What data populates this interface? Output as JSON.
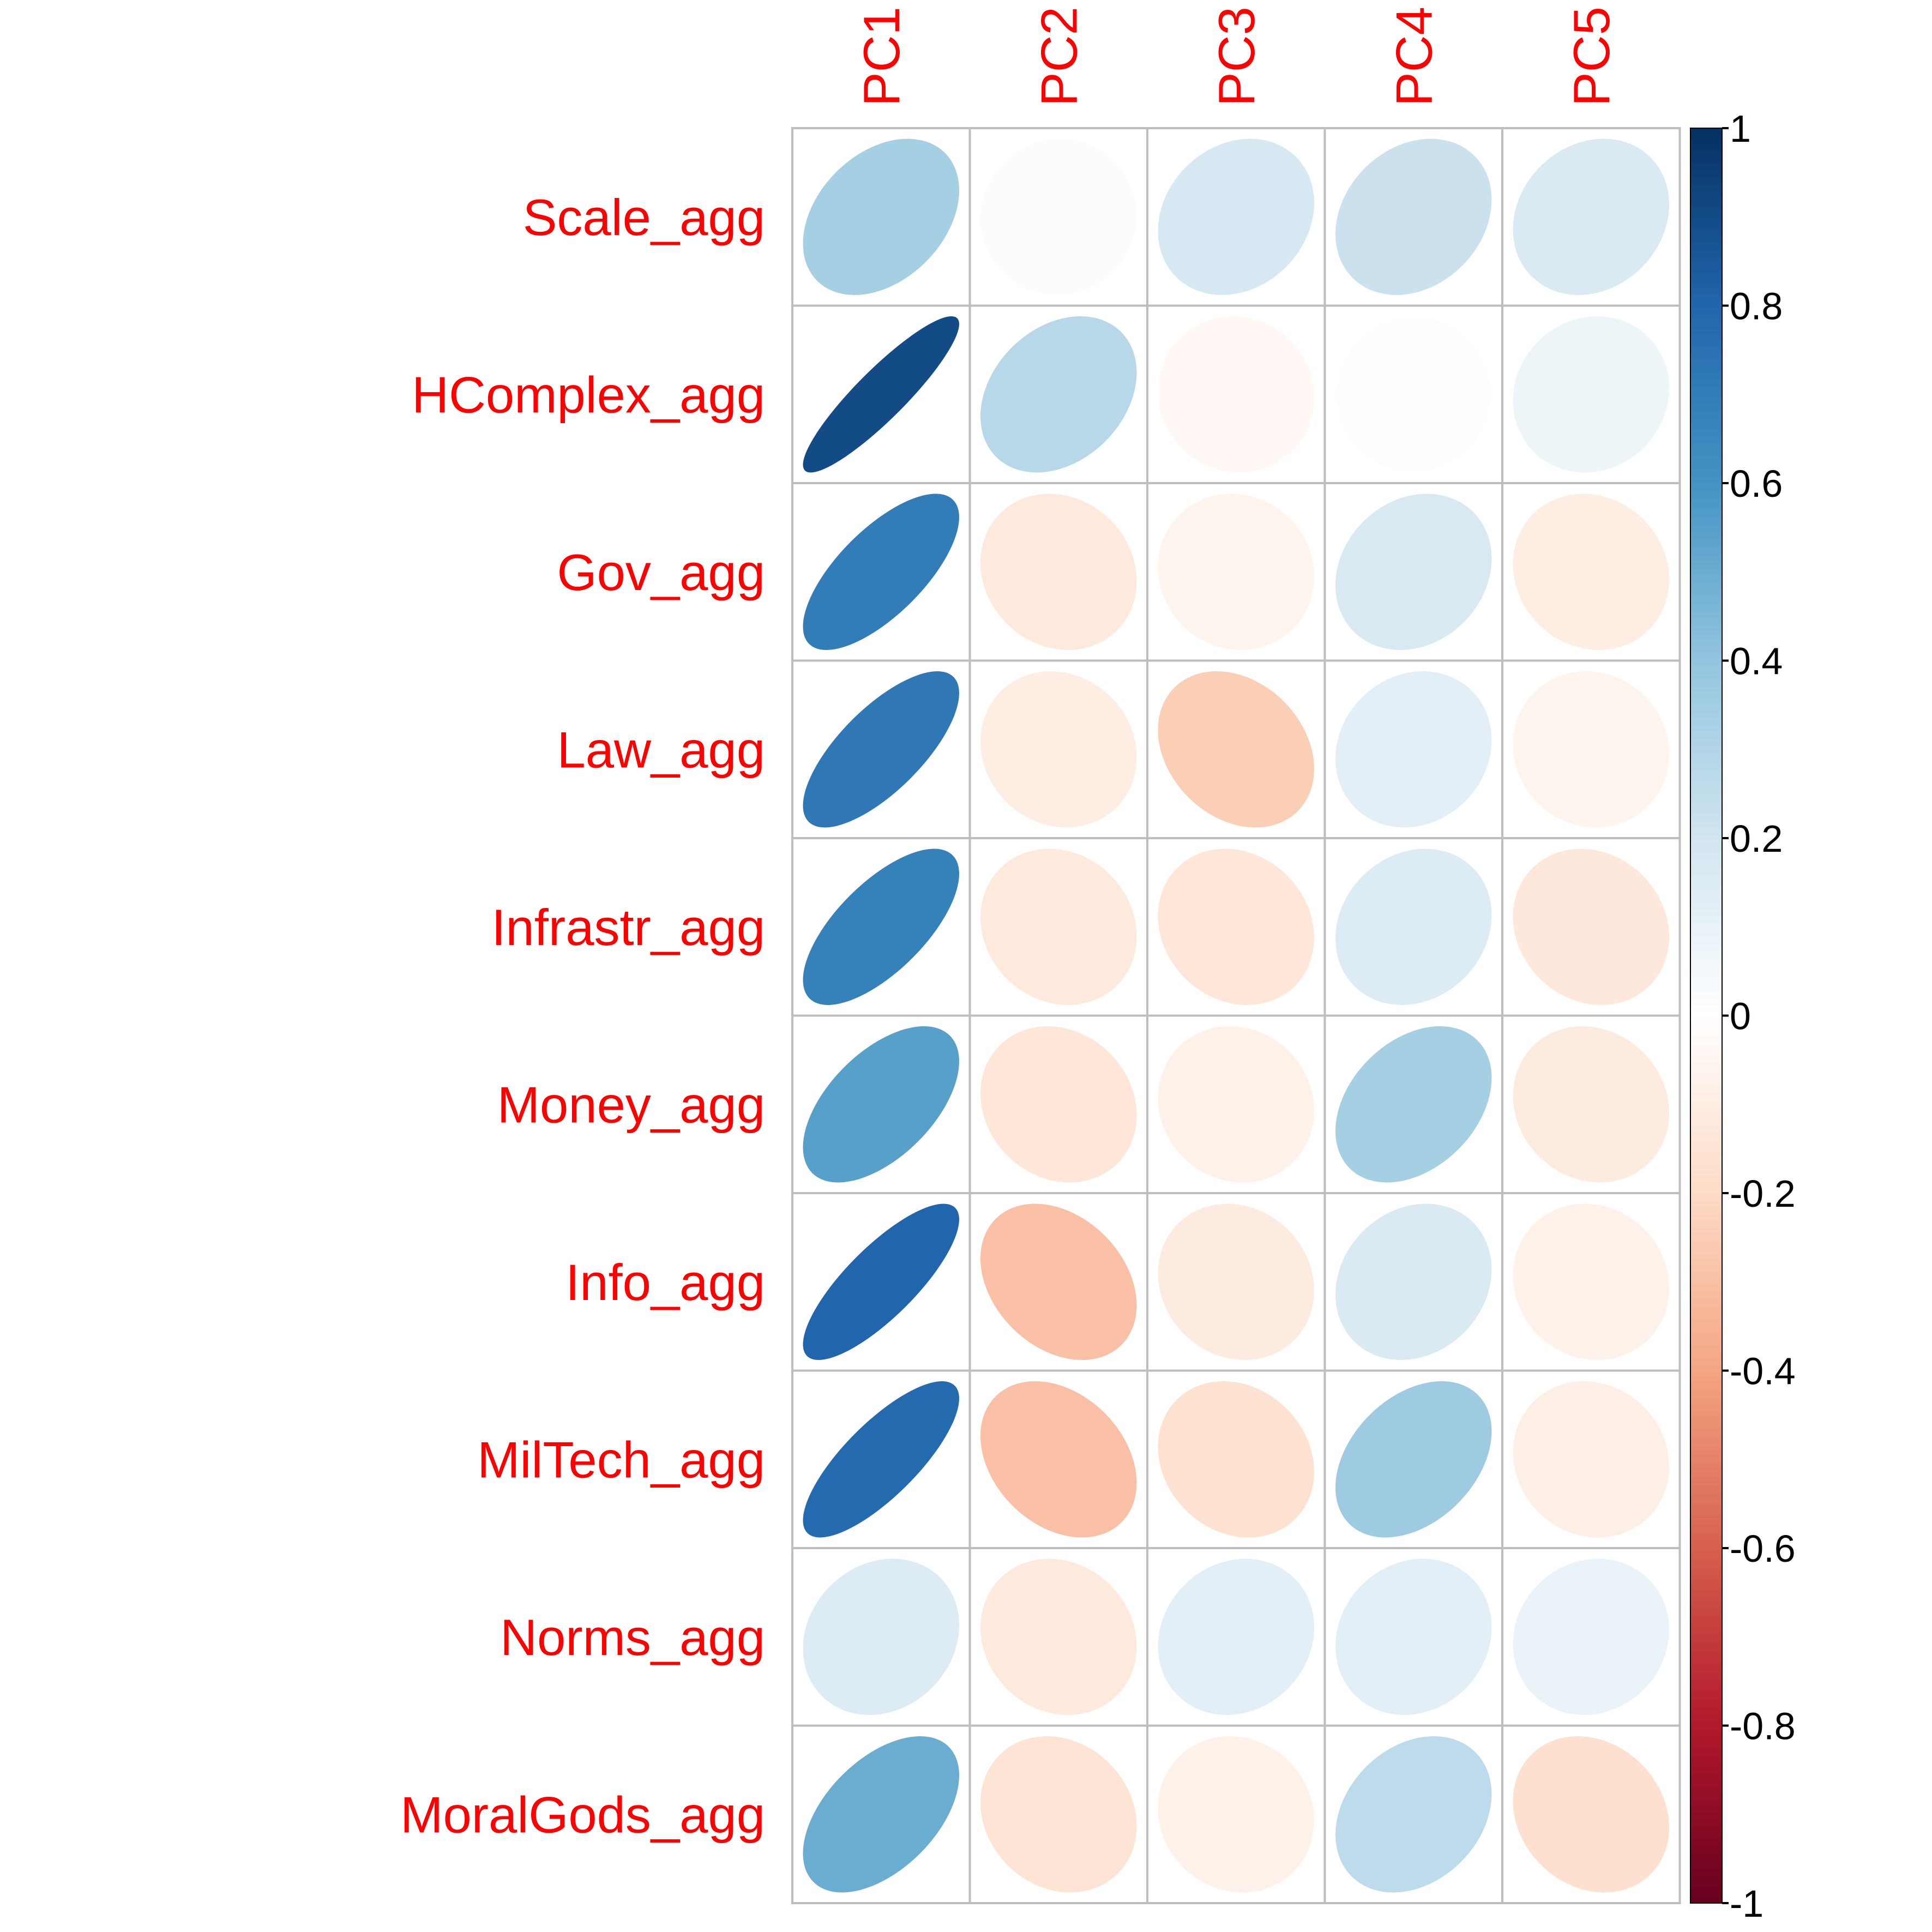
{
  "chart_data": {
    "type": "heatmap",
    "style": "correlation ellipse matrix",
    "rows": [
      "Scale_agg",
      "HComplex_agg",
      "Gov_agg",
      "Law_agg",
      "Infrastr_agg",
      "Money_agg",
      "Info_agg",
      "MilTech_agg",
      "Norms_agg",
      "MoralGods_agg"
    ],
    "columns": [
      "PC1",
      "PC2",
      "PC3",
      "PC4",
      "PC5"
    ],
    "values": [
      [
        0.34,
        0.02,
        0.18,
        0.22,
        0.16
      ],
      [
        0.9,
        0.28,
        -0.04,
        0.01,
        0.08
      ],
      [
        0.7,
        -0.12,
        -0.06,
        0.17,
        -0.1
      ],
      [
        0.72,
        -0.1,
        -0.25,
        0.12,
        -0.06
      ],
      [
        0.68,
        -0.12,
        -0.14,
        0.15,
        -0.13
      ],
      [
        0.55,
        -0.14,
        -0.08,
        0.34,
        -0.11
      ],
      [
        0.8,
        -0.3,
        -0.11,
        0.16,
        -0.08
      ],
      [
        0.78,
        -0.3,
        -0.16,
        0.36,
        -0.09
      ],
      [
        0.15,
        -0.12,
        0.12,
        0.12,
        0.09
      ],
      [
        0.5,
        -0.15,
        -0.08,
        0.26,
        -0.17
      ]
    ],
    "colorbar": {
      "min": -1,
      "max": 1,
      "ticks": [
        "1",
        "0.8",
        "0.6",
        "0.4",
        "0.2",
        "0",
        "-0.2",
        "-0.4",
        "-0.6",
        "-0.8",
        "-1"
      ],
      "tick_values": [
        1,
        0.8,
        0.6,
        0.4,
        0.2,
        0,
        -0.2,
        -0.4,
        -0.6,
        -0.8,
        -1
      ],
      "palette": [
        "#67001F",
        "#B2182B",
        "#D6604D",
        "#F4A582",
        "#FDDBC7",
        "#FFFFFF",
        "#D1E5F0",
        "#92C5DE",
        "#4393C3",
        "#2166AC",
        "#053061"
      ]
    },
    "label_color": "#FF0000",
    "grid_color": "#BEBEBE",
    "grid": true,
    "legend_position": "right"
  }
}
